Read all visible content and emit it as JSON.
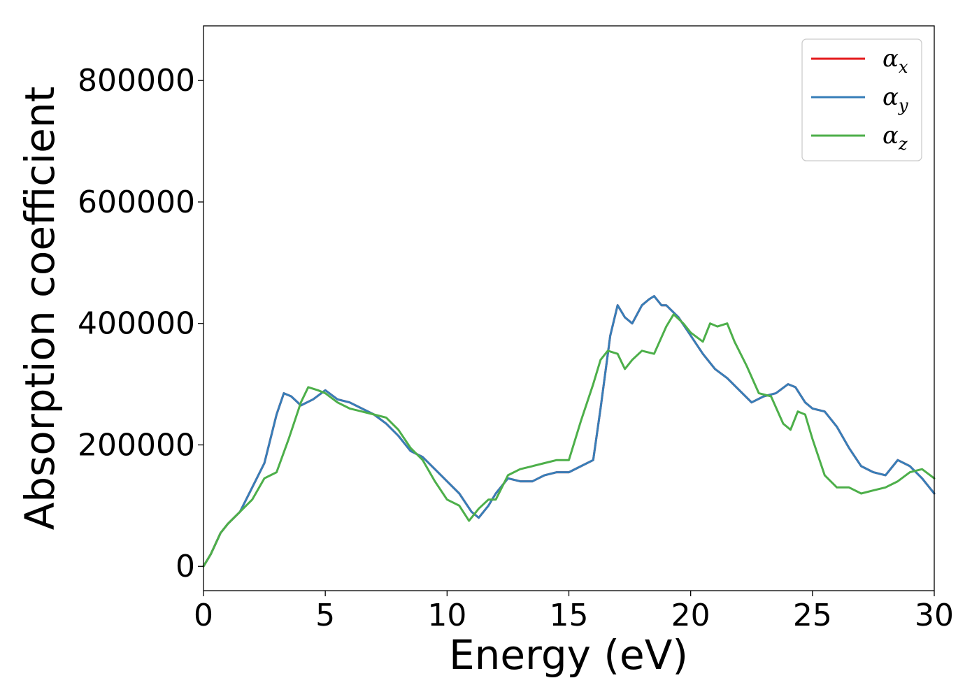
{
  "chart_data": {
    "type": "line",
    "title": "",
    "xlabel": "Energy (eV)",
    "ylabel": "Absorption coefficient",
    "xlim": [
      0,
      30
    ],
    "ylim": [
      -40000,
      890000
    ],
    "xticks": [
      0,
      5,
      10,
      15,
      20,
      25,
      30
    ],
    "yticks": [
      0,
      200000,
      400000,
      600000,
      800000
    ],
    "grid": false,
    "legend_position": "top-right",
    "series": [
      {
        "name": "α_x",
        "base": "α",
        "subscript": "x",
        "color": "#e41a1c",
        "x": [
          0,
          0.3,
          0.7,
          1,
          1.5,
          2,
          2.5,
          3,
          3.3,
          3.6,
          4,
          4.5,
          5,
          5.5,
          6,
          6.5,
          7,
          7.5,
          8,
          8.5,
          9,
          9.5,
          10,
          10.5,
          11,
          11.3,
          11.7,
          12,
          12.5,
          13,
          13.5,
          14,
          14.5,
          15,
          15.5,
          16,
          16.3,
          16.7,
          17,
          17.3,
          17.6,
          18,
          18.3,
          18.5,
          18.8,
          19,
          19.5,
          20,
          20.5,
          21,
          21.5,
          22,
          22.5,
          23,
          23.5,
          24,
          24.3,
          24.7,
          25,
          25.5,
          26,
          26.5,
          27,
          27.5,
          28,
          28.5,
          29,
          29.5,
          30
        ],
        "y": [
          0,
          20000,
          55000,
          70000,
          90000,
          130000,
          170000,
          250000,
          285000,
          280000,
          265000,
          275000,
          290000,
          275000,
          270000,
          260000,
          250000,
          235000,
          215000,
          190000,
          180000,
          160000,
          140000,
          120000,
          90000,
          80000,
          100000,
          120000,
          145000,
          140000,
          140000,
          150000,
          155000,
          155000,
          165000,
          175000,
          260000,
          380000,
          430000,
          410000,
          400000,
          430000,
          440000,
          445000,
          430000,
          430000,
          410000,
          380000,
          350000,
          325000,
          310000,
          290000,
          270000,
          280000,
          285000,
          300000,
          295000,
          270000,
          260000,
          255000,
          230000,
          195000,
          165000,
          155000,
          150000,
          175000,
          165000,
          145000,
          120000
        ]
      },
      {
        "name": "α_y",
        "base": "α",
        "subscript": "y",
        "color": "#377eb8",
        "x": [
          0,
          0.3,
          0.7,
          1,
          1.5,
          2,
          2.5,
          3,
          3.3,
          3.6,
          4,
          4.5,
          5,
          5.5,
          6,
          6.5,
          7,
          7.5,
          8,
          8.5,
          9,
          9.5,
          10,
          10.5,
          11,
          11.3,
          11.7,
          12,
          12.5,
          13,
          13.5,
          14,
          14.5,
          15,
          15.5,
          16,
          16.3,
          16.7,
          17,
          17.3,
          17.6,
          18,
          18.3,
          18.5,
          18.8,
          19,
          19.5,
          20,
          20.5,
          21,
          21.5,
          22,
          22.5,
          23,
          23.5,
          24,
          24.3,
          24.7,
          25,
          25.5,
          26,
          26.5,
          27,
          27.5,
          28,
          28.5,
          29,
          29.5,
          30
        ],
        "y": [
          0,
          20000,
          55000,
          70000,
          90000,
          130000,
          170000,
          250000,
          285000,
          280000,
          265000,
          275000,
          290000,
          275000,
          270000,
          260000,
          250000,
          235000,
          215000,
          190000,
          180000,
          160000,
          140000,
          120000,
          90000,
          80000,
          100000,
          120000,
          145000,
          140000,
          140000,
          150000,
          155000,
          155000,
          165000,
          175000,
          260000,
          380000,
          430000,
          410000,
          400000,
          430000,
          440000,
          445000,
          430000,
          430000,
          410000,
          380000,
          350000,
          325000,
          310000,
          290000,
          270000,
          280000,
          285000,
          300000,
          295000,
          270000,
          260000,
          255000,
          230000,
          195000,
          165000,
          155000,
          150000,
          175000,
          165000,
          145000,
          120000
        ]
      },
      {
        "name": "α_z",
        "base": "α",
        "subscript": "z",
        "color": "#4daf4a",
        "x": [
          0,
          0.3,
          0.7,
          1,
          1.5,
          2,
          2.5,
          3,
          3.5,
          4,
          4.3,
          4.7,
          5,
          5.5,
          6,
          6.5,
          7,
          7.5,
          8,
          8.5,
          9,
          9.5,
          10,
          10.5,
          10.9,
          11.3,
          11.7,
          12,
          12.5,
          13,
          13.5,
          14,
          14.5,
          15,
          15.5,
          16,
          16.3,
          16.6,
          17,
          17.3,
          17.6,
          18,
          18.5,
          19,
          19.3,
          19.7,
          20,
          20.5,
          20.8,
          21.1,
          21.5,
          21.8,
          22.3,
          22.8,
          23.3,
          23.8,
          24.1,
          24.4,
          24.7,
          25,
          25.5,
          26,
          26.5,
          27,
          27.5,
          28,
          28.5,
          29,
          29.5,
          30
        ],
        "y": [
          0,
          20000,
          55000,
          70000,
          90000,
          110000,
          145000,
          155000,
          210000,
          270000,
          295000,
          290000,
          285000,
          270000,
          260000,
          255000,
          250000,
          245000,
          225000,
          195000,
          175000,
          140000,
          110000,
          100000,
          75000,
          95000,
          110000,
          110000,
          150000,
          160000,
          165000,
          170000,
          175000,
          175000,
          240000,
          300000,
          340000,
          355000,
          350000,
          325000,
          340000,
          355000,
          350000,
          395000,
          415000,
          400000,
          385000,
          370000,
          400000,
          395000,
          400000,
          370000,
          330000,
          285000,
          280000,
          235000,
          225000,
          255000,
          250000,
          210000,
          150000,
          130000,
          130000,
          120000,
          125000,
          130000,
          140000,
          155000,
          160000,
          145000
        ]
      }
    ]
  }
}
